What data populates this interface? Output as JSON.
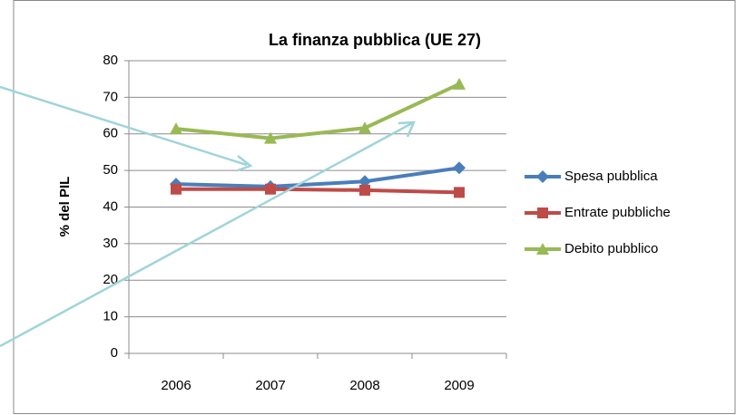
{
  "chart_data": {
    "type": "line",
    "title": "La finanza pubblica (UE 27)",
    "y_label": "% del PIL",
    "categories": [
      "2006",
      "2007",
      "2008",
      "2009"
    ],
    "series": [
      {
        "name": "Spesa pubblica",
        "color": "#4a7ebb",
        "marker": "diamond",
        "values": [
          46.3,
          45.6,
          47.0,
          50.7
        ]
      },
      {
        "name": "Entrate pubbliche",
        "color": "#be4b48",
        "marker": "square",
        "values": [
          44.9,
          44.9,
          44.6,
          44.0
        ]
      },
      {
        "name": "Debito pubblico",
        "color": "#98b954",
        "marker": "triangle",
        "values": [
          61.4,
          58.8,
          61.6,
          73.6
        ]
      }
    ],
    "ylim": [
      0,
      80
    ],
    "yticks": [
      0,
      10,
      20,
      30,
      40,
      50,
      60,
      70,
      80
    ],
    "grid": true,
    "legend": "right"
  }
}
